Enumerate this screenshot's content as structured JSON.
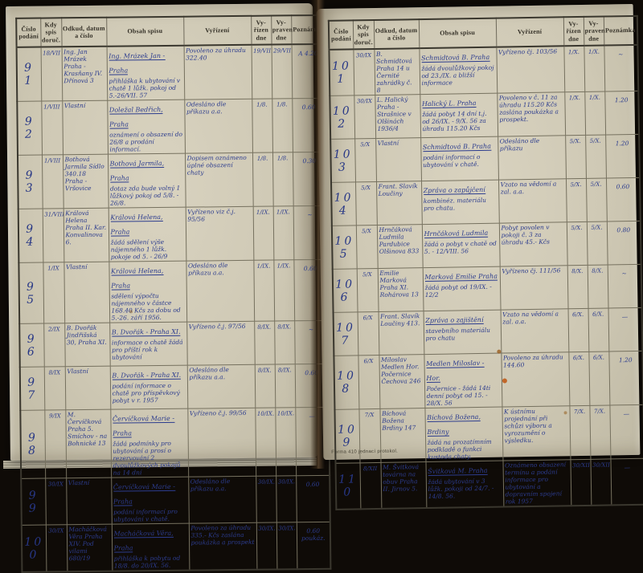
{
  "left_page": {
    "header": {
      "col_no": "Číslo podání",
      "col_received": "Kdy spis doruč.",
      "col_from": "Odkud, datum a číslo",
      "col_content": "Obsah spisu",
      "col_resolution": "Vyřízení",
      "col_resolved": "Vy- řízen dne",
      "col_dispatched": "Vy- praven dne",
      "col_note": "Poznámka"
    },
    "rows": [
      {
        "no": "9 1",
        "received": "18/VII",
        "from": "Ing. Jan Mrázek Praha - Krasňany IV. Dřínová 3",
        "title": "Ing. Mrázek Jan - Praha",
        "body": "přihláška k ubytování v chatě 1 lůžk. pokoj od 5.-26/VII. 57",
        "resolution": "Povoleno za úhradu 322.40",
        "resolved": "19/VII.",
        "dispatched": "29/VII.",
        "note": "A 4.20"
      },
      {
        "no": "9 2",
        "received": "1/VIII",
        "from": "Vlastní",
        "title": "Doležal Bedřich, Praha",
        "body": "oznámení o obsazení do 26/8 a prodání informací.",
        "resolution": "Odesláno dle příkazu a.a.",
        "resolved": "1/8.",
        "dispatched": "1/8.",
        "note": "0.60"
      },
      {
        "no": "9 3",
        "received": "1/VIII",
        "from": "Bothová Jarmila Sídlo 340.18 Praha - Vršovice",
        "title": "Bothová Jarmila, Praha",
        "body": "dotaz zda bude volný 1 lůžkový pokoj od 5/8. - 26/8.",
        "resolution": "Dopisem oznámeno úplné obsazení chaty",
        "resolved": "1/8.",
        "dispatched": "1/8.",
        "note": "0.30"
      },
      {
        "no": "9 4",
        "received": "31/VIII",
        "from": "Králová Helena Praha II. Kar. Konvalinova 6.",
        "title": "Králová Helena, Praha",
        "body": "žádá sdělení výše nájemného 1 lůžk. pokoje od 5. - 26/9",
        "resolution": "Vyřízeno viz č.j. 95/56",
        "resolved": "1/IX.",
        "dispatched": "1/IX.",
        "note": "~"
      },
      {
        "no": "9 5",
        "received": "1/IX",
        "from": "Vlastní",
        "title": "Králová Helena, Praha",
        "body": "sdělení výpočtu nájemného v částce 168.40 Kčs za dobu od 5.-26. září 1956.",
        "resolution": "Odesláno dle příkazu a.a.",
        "resolved": "1/IX.",
        "dispatched": "1/IX.",
        "note": "0.60"
      },
      {
        "no": "9 6",
        "received": "2/IX",
        "from": "B. Dvořák Jindřišská 30, Praha XI.",
        "title": "B. Dvořák - Praha XI.",
        "body": "informace o chatě žádá pro příští rok k ubytování",
        "resolution": "Vyřízeno č.j. 97/56",
        "resolved": "8/IX.",
        "dispatched": "8/IX.",
        "note": "~"
      },
      {
        "no": "9 7",
        "received": "8/IX",
        "from": "Vlastní",
        "title": "B. Dvořák - Praha XI.",
        "body": "podání informace o chatě pro příspěvkový pobyt v r. 1957",
        "resolution": "Odesláno dle příkazu a.a.",
        "resolved": "8/IX.",
        "dispatched": "8/IX.",
        "note": "0.60"
      },
      {
        "no": "9 8",
        "received": "9/IX",
        "from": "M. Červíčková Praha 5. Smíchov - na Bohnické 13",
        "title": "Červíčková Marie - Praha",
        "body": "žádá podmínky pro ubytování a prosí o rezervování 2 dvoulůžkových pokojů na 14 dní",
        "resolution": "Vyřízeno č.j. 99/56",
        "resolved": "10/IX.",
        "dispatched": "10/IX.",
        "note": "—"
      },
      {
        "no": "9 9",
        "received": "30/IX",
        "from": "Vlastní",
        "title": "Červíčková Marie - Praha",
        "body": "podání informací pro ubytování v chatě.",
        "resolution": "Odesláno dle příkazu a.a.",
        "resolved": "30/IX.",
        "dispatched": "30/IX.",
        "note": "0.60"
      },
      {
        "no": "10 0",
        "received": "30/IX",
        "from": "Macháčková Věra Praha XIV. Pod vilami 680/19",
        "title": "Macháčková Věra, Praha",
        "body": "přihláška k pobytu od 18/8. do 20/IX. 56.",
        "resolution": "Povoleno za úhradu 335.- Kčs zaslána poukázka a prospekt",
        "resolved": "30/IX.",
        "dispatched": "30/IX.",
        "note": "0.60 poukáz."
      }
    ]
  },
  "right_page": {
    "header": {
      "col_no": "Číslo podání",
      "col_received": "Kdy spis doruč.",
      "col_from": "Odkud, datum a číslo",
      "col_content": "Obsah spisu",
      "col_resolution": "Vyřízení",
      "col_resolved": "Vy- řízen dne",
      "col_dispatched": "Vy- praven dne",
      "col_note": "Poznámka"
    },
    "rows": [
      {
        "no": "10 1",
        "received": "30/IX",
        "from": "B. Schmidtová Praha 14 u Černité zahrádky č. 8",
        "title": "Schmidtová B. Praha",
        "body": "žádá dvoulůžkový pokoj od 23./IX. a bližší informace",
        "resolution": "Vyřízeno čj. 103/56",
        "resolved": "1/X.",
        "dispatched": "1/X.",
        "note": "~"
      },
      {
        "no": "10 2",
        "received": "30/IX",
        "from": "L. Halický Praha - Strašnice v Olšinách 1936/4",
        "title": "Halický L. Praha",
        "body": "žádá pobyt 14 dní t.j. od 26/IX. - 9/X. 56 za úhradu 115.20 Kčs",
        "resolution": "Povoleno v č. 11 za úhradu 115.20 Kčs zaslána poukázka a prospekt.",
        "resolved": "1/X.",
        "dispatched": "1/X.",
        "note": "1.20"
      },
      {
        "no": "10 3",
        "received": "5/X",
        "from": "Vlastní",
        "title": "Schmidtová B. Praha",
        "body": "podání informací o ubytování v chatě.",
        "resolution": "Odesláno dle příkazu",
        "resolved": "5/X.",
        "dispatched": "5/X.",
        "note": "1.20"
      },
      {
        "no": "10 4",
        "received": "5/X",
        "from": "Frant. Slavík Loučiny",
        "title": "Zpráva o zapůjčení",
        "body": "kombinéz. materiálu pro chatu.",
        "resolution": "Vzato na vědomí a zal. a.a.",
        "resolved": "5/X.",
        "dispatched": "5/X.",
        "note": "0.60"
      },
      {
        "no": "10 5",
        "received": "5/X",
        "from": "Hrnčáková Ludmila Pardubice Olšinova 833",
        "title": "Hrnčáková Ludmila",
        "body": "žádá o pobyt v chatě od 5. - 12/VIII. 56",
        "resolution": "Pobyt povolen v pokoji č. 3 za úhradu 45.- Kčs",
        "resolved": "5/X.",
        "dispatched": "5/X.",
        "note": "0.80"
      },
      {
        "no": "10 6",
        "received": "5/X",
        "from": "Emilie Marková Praha XI. Rohárova 13",
        "title": "Marková Emilie Praha",
        "body": "žádá pobyt od 19/IX. - 12/2",
        "resolution": "Vyřízeno čj. 111/56",
        "resolved": "8/X.",
        "dispatched": "8/X.",
        "note": "~"
      },
      {
        "no": "10 7",
        "received": "6/X",
        "from": "Frant. Slavík Loučiny 413.",
        "title": "Zpráva o zajištění",
        "body": "stavebního materiálu pro chatu",
        "resolution": "Vzato na vědomí a zal. a.a.",
        "resolved": "6/X.",
        "dispatched": "6/X.",
        "note": "—"
      },
      {
        "no": "10 8",
        "received": "6/X",
        "from": "Miloslav Medlen Hor. Počernice Čechova 246",
        "title": "Medlen Miloslav - Hor.",
        "body": "Počernice - žádá 14ti denní pobyt od 15. - 28/X. 56",
        "resolution": "Povoleno za úhradu 144.60",
        "resolved": "6/X.",
        "dispatched": "6/X.",
        "note": "1.20"
      },
      {
        "no": "10 9",
        "received": "7/X",
        "from": "Bíchová Božena Brdiny 147",
        "title": "Bíchová Božena, Brdiny",
        "body": "žádá na prozatímním podkladě o funkci kustoda chaty.",
        "resolution": "K ústnímu projednání při schůzi výboru a vyrozumění o výsledku.",
        "resolved": "7/X.",
        "dispatched": "7/X.",
        "note": "—"
      },
      {
        "no": "11 0",
        "received": "8/XII",
        "from": "M. Švitková továrna na obuv Praha II. Jirnov 5.",
        "title": "Švitková M. Praha",
        "body": "žádá ubytování v 3 lůžk. pokoji od 24/7. - 14/8. 56.",
        "resolution": "Oznámeno obsazení termínu a podání informace pro ubytování a dopravním spojení rok 1957",
        "resolved": "30/XII",
        "dispatched": "30/XII",
        "note": "—"
      }
    ],
    "footer": "Forma 410 jednací protokol."
  }
}
